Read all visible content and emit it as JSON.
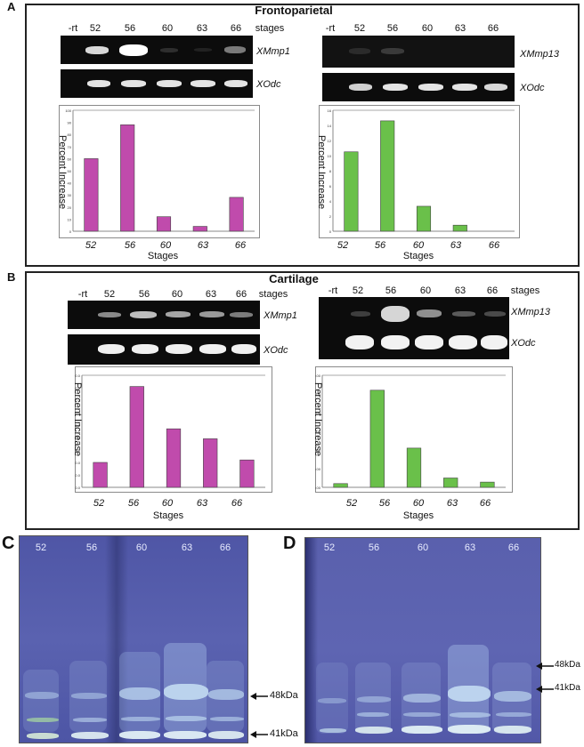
{
  "panel_a": {
    "letter": "A",
    "title": "Frontoparietal",
    "left_lanes": [
      "-rt",
      "52",
      "56",
      "60",
      "63",
      "66",
      "stages"
    ],
    "right_lanes": [
      "-rt",
      "52",
      "56",
      "60",
      "63",
      "66"
    ],
    "left_gene": "XMmp1",
    "right_gene": "XMmp13",
    "ref_gene": "XOdc"
  },
  "panel_b": {
    "letter": "B",
    "title": "Cartilage",
    "left_lanes": [
      "-rt",
      "52",
      "56",
      "60",
      "63",
      "66",
      "stages"
    ],
    "right_lanes": [
      "-rt",
      "52",
      "56",
      "60",
      "63",
      "66",
      "stages"
    ],
    "left_gene": "XMmp1",
    "right_gene": "XMmp13",
    "ref_gene": "XOdc"
  },
  "chart_data": [
    {
      "type": "bar",
      "categories": [
        "52",
        "56",
        "60",
        "63",
        "66"
      ],
      "values": [
        60,
        88,
        12,
        4,
        28
      ],
      "ylim": [
        0,
        100
      ],
      "ticks": [
        "0",
        "10",
        "20",
        "30",
        "40",
        "50",
        "60",
        "70",
        "80",
        "90",
        "100"
      ],
      "ylabel": "Percent Increase",
      "xlabel": "Stages",
      "color": "#c04bac"
    },
    {
      "type": "bar",
      "categories": [
        "52",
        "56",
        "60",
        "63",
        "66"
      ],
      "values": [
        10.5,
        14.6,
        3.3,
        0.8,
        0
      ],
      "ylim": [
        0,
        16
      ],
      "ticks": [
        "0",
        "2",
        "4",
        "6",
        "8",
        "10",
        "12",
        "14",
        "16"
      ],
      "ylabel": "Percent Increase",
      "xlabel": "Stages",
      "color": "#6ac04a"
    },
    {
      "type": "bar",
      "categories": [
        "52",
        "56",
        "60",
        "63",
        "66"
      ],
      "values": [
        20,
        81,
        47,
        39,
        22
      ],
      "ylim": [
        0,
        90
      ],
      "ticks": [
        "0.0",
        "10.0",
        "20.0",
        "30.0",
        "40.0",
        "50.0",
        "60.0",
        "70.0",
        "80.0",
        "90.0"
      ],
      "ylabel": "Percent Increase",
      "xlabel": "Stages",
      "color": "#c04bac"
    },
    {
      "type": "bar",
      "categories": [
        "52",
        "56",
        "60",
        "63",
        "66"
      ],
      "values": [
        10,
        260,
        105,
        25,
        14
      ],
      "ylim": [
        0,
        300
      ],
      "ticks": [
        "0.00",
        "50.00",
        "100.00",
        "150.00",
        "200.00",
        "250.00",
        "300.00"
      ],
      "ylabel": "Percent Increase",
      "xlabel": "Stages",
      "color": "#6ac04a"
    }
  ],
  "panel_c": {
    "letter": "C",
    "lanes": [
      "52",
      "56",
      "60",
      "63",
      "66"
    ],
    "markers": [
      "48kDa",
      "41kDa"
    ]
  },
  "panel_d": {
    "letter": "D",
    "lanes": [
      "52",
      "56",
      "60",
      "63",
      "66"
    ],
    "markers": [
      "48kDa",
      "41kDa"
    ]
  },
  "colors": {
    "gel_bg": "#0c0c0c",
    "band": "#f4f4f4",
    "protein_bg": "#5158a8"
  }
}
